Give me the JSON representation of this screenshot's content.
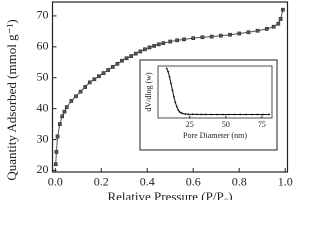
{
  "chart_data": [
    {
      "type": "scatter-line",
      "x_label": "Relative Pressure (P/P₀)",
      "y_label": "Quantity Adsorbed (mmol g⁻¹)",
      "x": [
        0.002,
        0.005,
        0.01,
        0.02,
        0.03,
        0.04,
        0.05,
        0.07,
        0.09,
        0.11,
        0.13,
        0.15,
        0.17,
        0.19,
        0.21,
        0.23,
        0.25,
        0.27,
        0.29,
        0.31,
        0.33,
        0.35,
        0.37,
        0.39,
        0.41,
        0.43,
        0.45,
        0.47,
        0.5,
        0.53,
        0.56,
        0.6,
        0.64,
        0.68,
        0.72,
        0.76,
        0.8,
        0.84,
        0.88,
        0.92,
        0.95,
        0.97,
        0.98,
        0.99
      ],
      "values": [
        22,
        26,
        31,
        35,
        37.5,
        39,
        40.5,
        42.5,
        44,
        45.5,
        47,
        48.5,
        49.5,
        50.5,
        51.5,
        52.5,
        53.5,
        54.5,
        55.5,
        56.3,
        57,
        57.8,
        58.5,
        59.2,
        59.8,
        60.3,
        60.8,
        61.2,
        61.7,
        62.1,
        62.4,
        62.8,
        63.1,
        63.3,
        63.6,
        63.9,
        64.3,
        64.7,
        65.2,
        65.8,
        66.5,
        67.5,
        69,
        72
      ],
      "color": "#555555",
      "xlim": [
        -0.012,
        1.01
      ],
      "ylim": [
        19.5,
        74.5
      ],
      "xticks": [
        {
          "value": 0,
          "label": "0.0"
        },
        {
          "value": 0.2,
          "label": "0.2"
        },
        {
          "value": 0.4,
          "label": "0.4"
        },
        {
          "value": 0.6,
          "label": "0.6"
        },
        {
          "value": 0.8,
          "label": "0.8"
        },
        {
          "value": 1.0,
          "label": "1.0"
        }
      ],
      "yticks": [
        20,
        30,
        40,
        50,
        60,
        70
      ]
    },
    {
      "type": "scatter-line",
      "x_label": "Pore Diameter (nm)",
      "y_label": "dV/dlog (w)",
      "x": [
        9,
        10,
        11,
        12,
        13,
        14,
        15,
        16,
        17,
        18,
        19,
        20,
        22,
        24,
        27,
        30,
        33,
        36,
        40,
        44,
        48,
        52,
        56,
        60,
        64,
        68,
        72,
        76,
        80
      ],
      "values": [
        1.0,
        0.93,
        0.82,
        0.68,
        0.54,
        0.4,
        0.28,
        0.19,
        0.12,
        0.08,
        0.06,
        0.045,
        0.035,
        0.03,
        0.028,
        0.026,
        0.025,
        0.025,
        0.024,
        0.024,
        0.024,
        0.024,
        0.024,
        0.024,
        0.024,
        0.024,
        0.024,
        0.024,
        0.025
      ],
      "color": "#111111",
      "xlim": [
        3,
        82
      ],
      "ylim": [
        -0.05,
        1.05
      ],
      "xticks": [
        25,
        50,
        75
      ]
    }
  ]
}
